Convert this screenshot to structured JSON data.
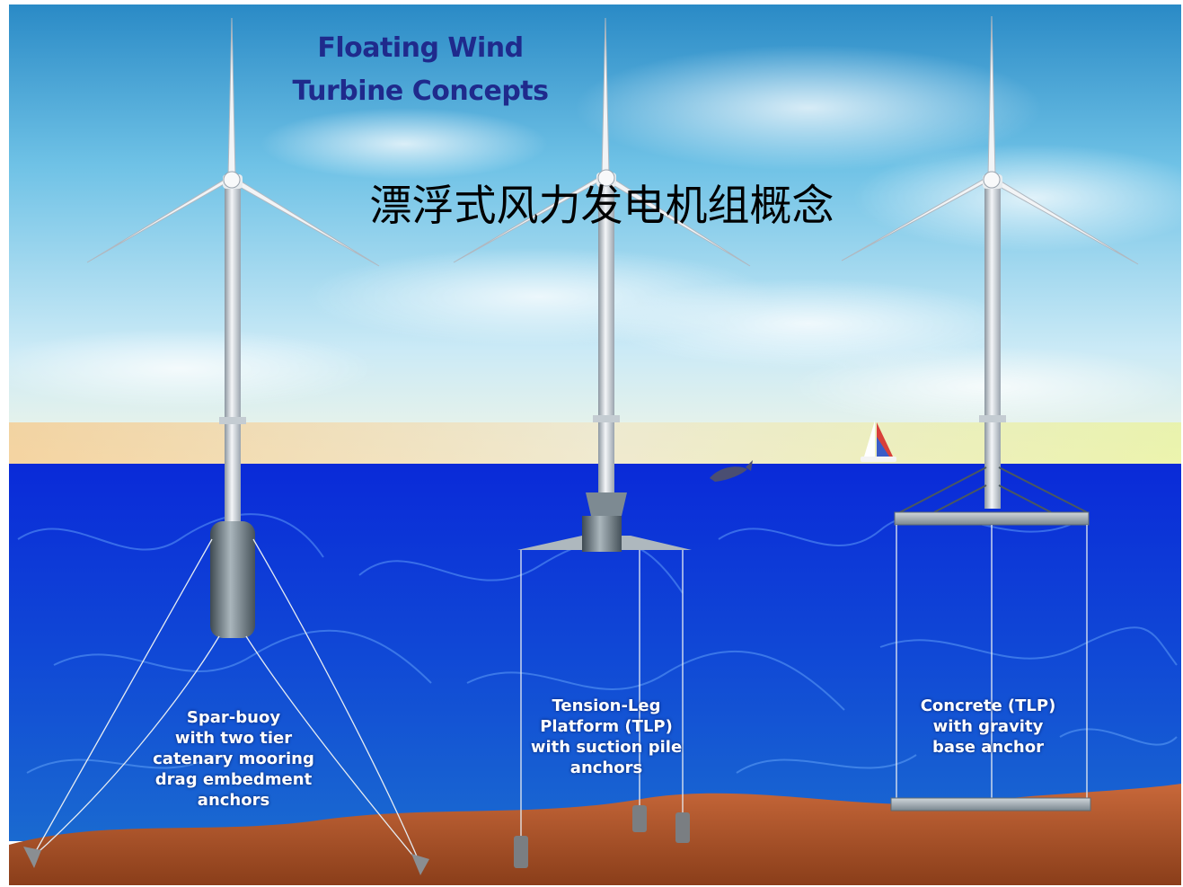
{
  "title_lines": [
    "Floating Wind",
    "Turbine Concepts"
  ],
  "subtitle": "漂浮式风力发电机组概念",
  "concepts": [
    {
      "lines": [
        "Spar-buoy",
        "with two tier",
        "catenary mooring",
        "drag embedment",
        "anchors"
      ]
    },
    {
      "lines": [
        "Tension-Leg",
        "Platform (TLP)",
        "with suction pile",
        "anchors"
      ]
    },
    {
      "lines": [
        "Concrete (TLP)",
        "with gravity",
        "base anchor"
      ]
    }
  ],
  "colors": {
    "sky_top": "#2a8ac6",
    "sky_light": "#dcf2fb",
    "sea": "#0a2fd6",
    "seabed": "#b25a2a",
    "title": "#1f2a8c"
  }
}
